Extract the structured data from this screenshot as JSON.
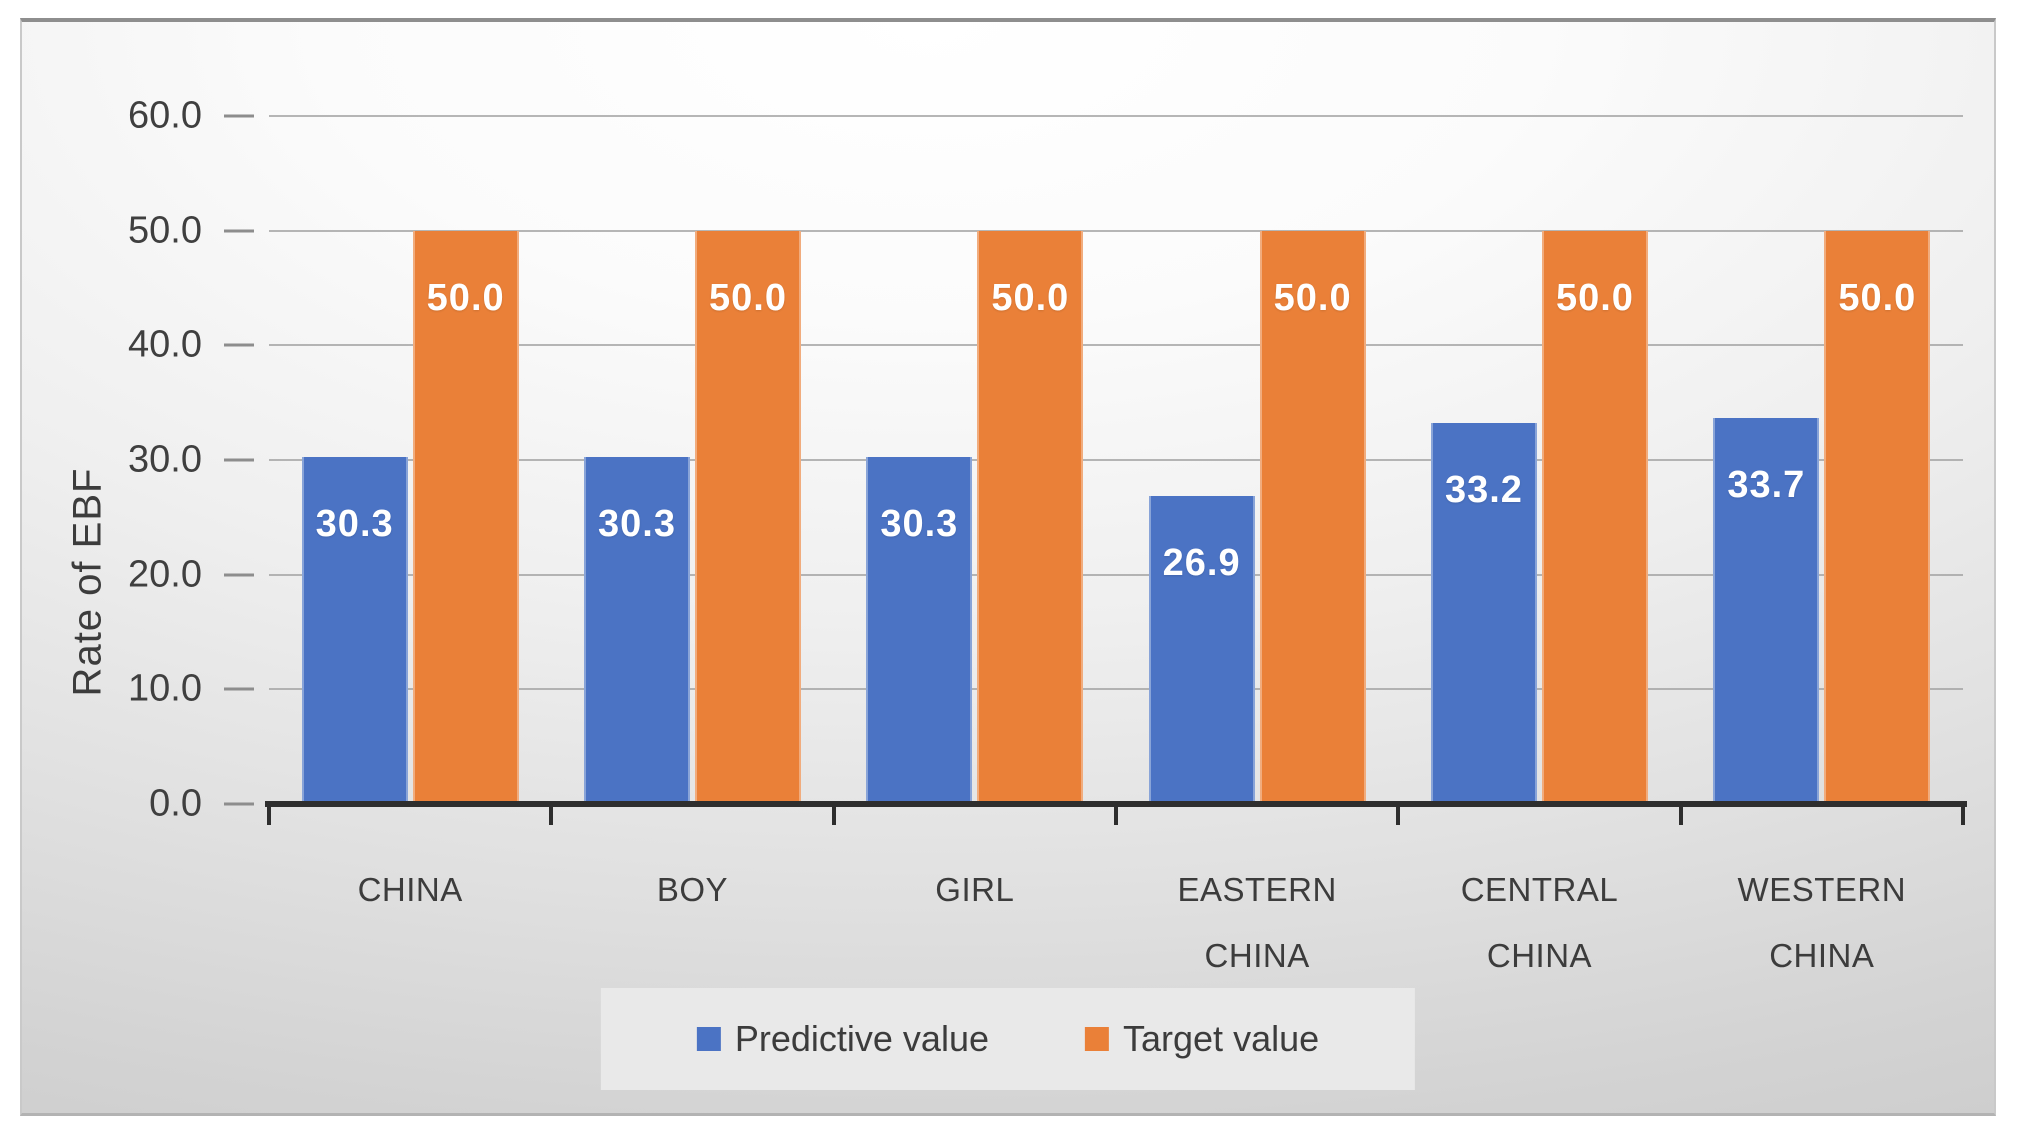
{
  "chart_data": {
    "type": "bar",
    "categories": [
      "CHINA",
      "BOY",
      "GIRL",
      "EASTERN CHINA",
      "CENTRAL CHINA",
      "WESTERN CHINA"
    ],
    "series": [
      {
        "name": "Predictive value",
        "color": "#4B73C4",
        "values": [
          30.3,
          30.3,
          30.3,
          26.9,
          33.2,
          33.7
        ]
      },
      {
        "name": "Target value",
        "color": "#EA8038",
        "values": [
          50.0,
          50.0,
          50.0,
          50.0,
          50.0,
          50.0
        ]
      }
    ],
    "title": "",
    "xlabel": "",
    "ylabel": "Rate of EBF",
    "ylim": [
      0,
      60
    ],
    "ytick_step": 10,
    "ytick_labels": [
      "0.0",
      "10.0",
      "20.0",
      "30.0",
      "40.0",
      "50.0",
      "60.0"
    ],
    "grid": true,
    "legend_position": "bottom",
    "data_label_position": "inside-end",
    "data_label_format": "0.0"
  },
  "colors": {
    "series_blue": "#4B73C4",
    "series_orange": "#EA8038",
    "gridline": "#A4A4A4",
    "axis_line": "#2E2E2E",
    "text": "#3C3C3C",
    "data_label_text": "#FFFFFF",
    "legend_background": "#E9E9E9"
  }
}
